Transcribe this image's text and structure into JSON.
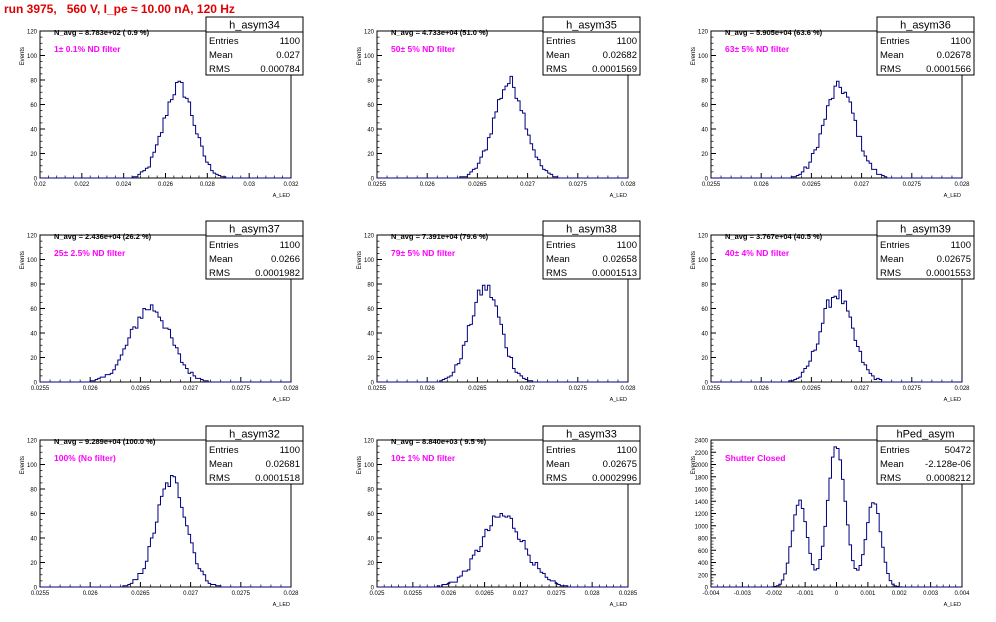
{
  "header": {
    "run_title": "run 3975,   560 V, I_pe ≈ 10.00 nA, 120 Hz"
  },
  "colors": {
    "histogram_line": "#000080",
    "annotation": "#ff00ff",
    "title": "#e00000",
    "frame": "#000000"
  },
  "chart_data": [
    {
      "type": "histogram",
      "name": "h_asym34",
      "stats": {
        "entries_label": "Entries",
        "entries": "1100",
        "mean_label": "Mean",
        "mean": "0.027",
        "rms_label": "RMS",
        "rms": "0.000784"
      },
      "navg": "N_avg = 8.783e+02 ( 0.9 %)",
      "filter": "1± 0.1% ND filter",
      "xlabel": "A_LED",
      "ylabel": "Events",
      "xlim": [
        0.02,
        0.033
      ],
      "ylim": [
        0,
        120
      ],
      "xticks": [
        "0.02",
        "0.022",
        "0.024",
        "0.026",
        "0.028",
        "0.03",
        "0.032"
      ],
      "yticks": [
        "0",
        "20",
        "40",
        "60",
        "80",
        "100",
        "120"
      ],
      "profile": {
        "center": 0.0272,
        "sigma": 0.00078,
        "peak": 75
      }
    },
    {
      "type": "histogram",
      "name": "h_asym35",
      "stats": {
        "entries_label": "Entries",
        "entries": "1100",
        "mean_label": "Mean",
        "mean": "0.02682",
        "rms_label": "RMS",
        "rms": "0.0001569"
      },
      "navg": "N_avg = 4.733e+04 (51.0 %)",
      "filter": "50± 5% ND filter",
      "xlabel": "A_LED",
      "ylabel": "Events",
      "xlim": [
        0.0255,
        0.028
      ],
      "ylim": [
        0,
        120
      ],
      "xticks": [
        "0.0255",
        "0.026",
        "0.0265",
        "0.027",
        "0.0275",
        "0.028"
      ],
      "yticks": [
        "0",
        "20",
        "40",
        "60",
        "80",
        "100",
        "120"
      ],
      "profile": {
        "center": 0.02682,
        "sigma": 0.000157,
        "peak": 78
      }
    },
    {
      "type": "histogram",
      "name": "h_asym36",
      "stats": {
        "entries_label": "Entries",
        "entries": "1100",
        "mean_label": "Mean",
        "mean": "0.02678",
        "rms_label": "RMS",
        "rms": "0.0001566"
      },
      "navg": "N_avg = 5.905e+04 (63.6 %)",
      "filter": "63± 5% ND filter",
      "xlabel": "A_LED",
      "ylabel": "Events",
      "xlim": [
        0.0255,
        0.028
      ],
      "ylim": [
        0,
        120
      ],
      "xticks": [
        "0.0255",
        "0.026",
        "0.0265",
        "0.027",
        "0.0275",
        "0.028"
      ],
      "yticks": [
        "0",
        "20",
        "40",
        "60",
        "80",
        "100",
        "120"
      ],
      "profile": {
        "center": 0.02678,
        "sigma": 0.000157,
        "peak": 74
      }
    },
    {
      "type": "histogram",
      "name": "h_asym37",
      "stats": {
        "entries_label": "Entries",
        "entries": "1100",
        "mean_label": "Mean",
        "mean": "0.0266",
        "rms_label": "RMS",
        "rms": "0.0001982"
      },
      "navg": "N_avg = 2.436e+04 (26.2 %)",
      "filter": "25± 2.5% ND filter",
      "xlabel": "A_LED",
      "ylabel": "Events",
      "xlim": [
        0.0255,
        0.028
      ],
      "ylim": [
        0,
        120
      ],
      "xticks": [
        "0.0255",
        "0.026",
        "0.0265",
        "0.027",
        "0.0275",
        "0.028"
      ],
      "yticks": [
        "0",
        "20",
        "40",
        "60",
        "80",
        "100",
        "120"
      ],
      "profile": {
        "center": 0.0266,
        "sigma": 0.000198,
        "peak": 61
      }
    },
    {
      "type": "histogram",
      "name": "h_asym38",
      "stats": {
        "entries_label": "Entries",
        "entries": "1100",
        "mean_label": "Mean",
        "mean": "0.02658",
        "rms_label": "RMS",
        "rms": "0.0001513"
      },
      "navg": "N_avg = 7.391e+04 (79.6 %)",
      "filter": "79± 5% ND filter",
      "xlabel": "A_LED",
      "ylabel": "Events",
      "xlim": [
        0.0255,
        0.028
      ],
      "ylim": [
        0,
        120
      ],
      "xticks": [
        "0.0255",
        "0.026",
        "0.0265",
        "0.027",
        "0.0275",
        "0.028"
      ],
      "yticks": [
        "0",
        "20",
        "40",
        "60",
        "80",
        "100",
        "120"
      ],
      "profile": {
        "center": 0.02658,
        "sigma": 0.000151,
        "peak": 77
      }
    },
    {
      "type": "histogram",
      "name": "h_asym39",
      "stats": {
        "entries_label": "Entries",
        "entries": "1100",
        "mean_label": "Mean",
        "mean": "0.02675",
        "rms_label": "RMS",
        "rms": "0.0001553"
      },
      "navg": "N_avg = 3.767e+04 (40.5 %)",
      "filter": "40± 4% ND filter",
      "xlabel": "A_LED",
      "ylabel": "Events",
      "xlim": [
        0.0255,
        0.028
      ],
      "ylim": [
        0,
        120
      ],
      "xticks": [
        "0.0255",
        "0.026",
        "0.0265",
        "0.027",
        "0.0275",
        "0.028"
      ],
      "yticks": [
        "0",
        "20",
        "40",
        "60",
        "80",
        "100",
        "120"
      ],
      "profile": {
        "center": 0.02675,
        "sigma": 0.000155,
        "peak": 72
      }
    },
    {
      "type": "histogram",
      "name": "h_asym32",
      "stats": {
        "entries_label": "Entries",
        "entries": "1100",
        "mean_label": "Mean",
        "mean": "0.02681",
        "rms_label": "RMS",
        "rms": "0.0001518"
      },
      "navg": "N_avg = 9.289e+04 (100.0 %)",
      "filter": "100% (No filter)",
      "xlabel": "A_LED",
      "ylabel": "Events",
      "xlim": [
        0.0255,
        0.028
      ],
      "ylim": [
        0,
        120
      ],
      "xticks": [
        "0.0255",
        "0.026",
        "0.0265",
        "0.027",
        "0.0275",
        "0.028"
      ],
      "yticks": [
        "0",
        "20",
        "40",
        "60",
        "80",
        "100",
        "120"
      ],
      "profile": {
        "center": 0.02681,
        "sigma": 0.000152,
        "peak": 87
      }
    },
    {
      "type": "histogram",
      "name": "h_asym33",
      "stats": {
        "entries_label": "Entries",
        "entries": "1100",
        "mean_label": "Mean",
        "mean": "0.02675",
        "rms_label": "RMS",
        "rms": "0.0002996"
      },
      "navg": "N_avg = 8.840e+03 ( 9.5 %)",
      "filter": "10± 1% ND filter",
      "xlabel": "A_LED",
      "ylabel": "Events",
      "xlim": [
        0.025,
        0.0285
      ],
      "ylim": [
        0,
        120
      ],
      "xticks": [
        "0.025",
        "0.0255",
        "0.026",
        "0.0265",
        "0.027",
        "0.0275",
        "0.028",
        "0.0285"
      ],
      "yticks": [
        "0",
        "20",
        "40",
        "60",
        "80",
        "100",
        "120"
      ],
      "profile": {
        "center": 0.02675,
        "sigma": 0.0003,
        "peak": 58
      }
    },
    {
      "type": "histogram",
      "name": "hPed_asym",
      "stats": {
        "entries_label": "Entries",
        "entries": "50472",
        "mean_label": "Mean",
        "mean": "-2.128e-06",
        "rms_label": "RMS",
        "rms": "0.0008212"
      },
      "navg": "",
      "filter": "Shutter Closed",
      "xlabel": "A_LED",
      "ylabel": "Events",
      "xlim": [
        -0.004,
        0.004
      ],
      "ylim": [
        0,
        2400
      ],
      "xticks": [
        "-0.004",
        "-0.003",
        "-0.002",
        "-0.001",
        "0",
        "0.001",
        "0.002",
        "0.003",
        "0.004"
      ],
      "yticks": [
        "0",
        "200",
        "400",
        "600",
        "800",
        "1000",
        "1200",
        "1400",
        "1600",
        "1800",
        "2000",
        "2200",
        "2400"
      ],
      "profile": {
        "components": [
          {
            "center": -0.00118,
            "sigma": 0.00024,
            "peak": 1400
          },
          {
            "center": 0.0,
            "sigma": 0.00028,
            "peak": 2300
          },
          {
            "center": 0.00118,
            "sigma": 0.00024,
            "peak": 1400
          }
        ]
      }
    }
  ]
}
